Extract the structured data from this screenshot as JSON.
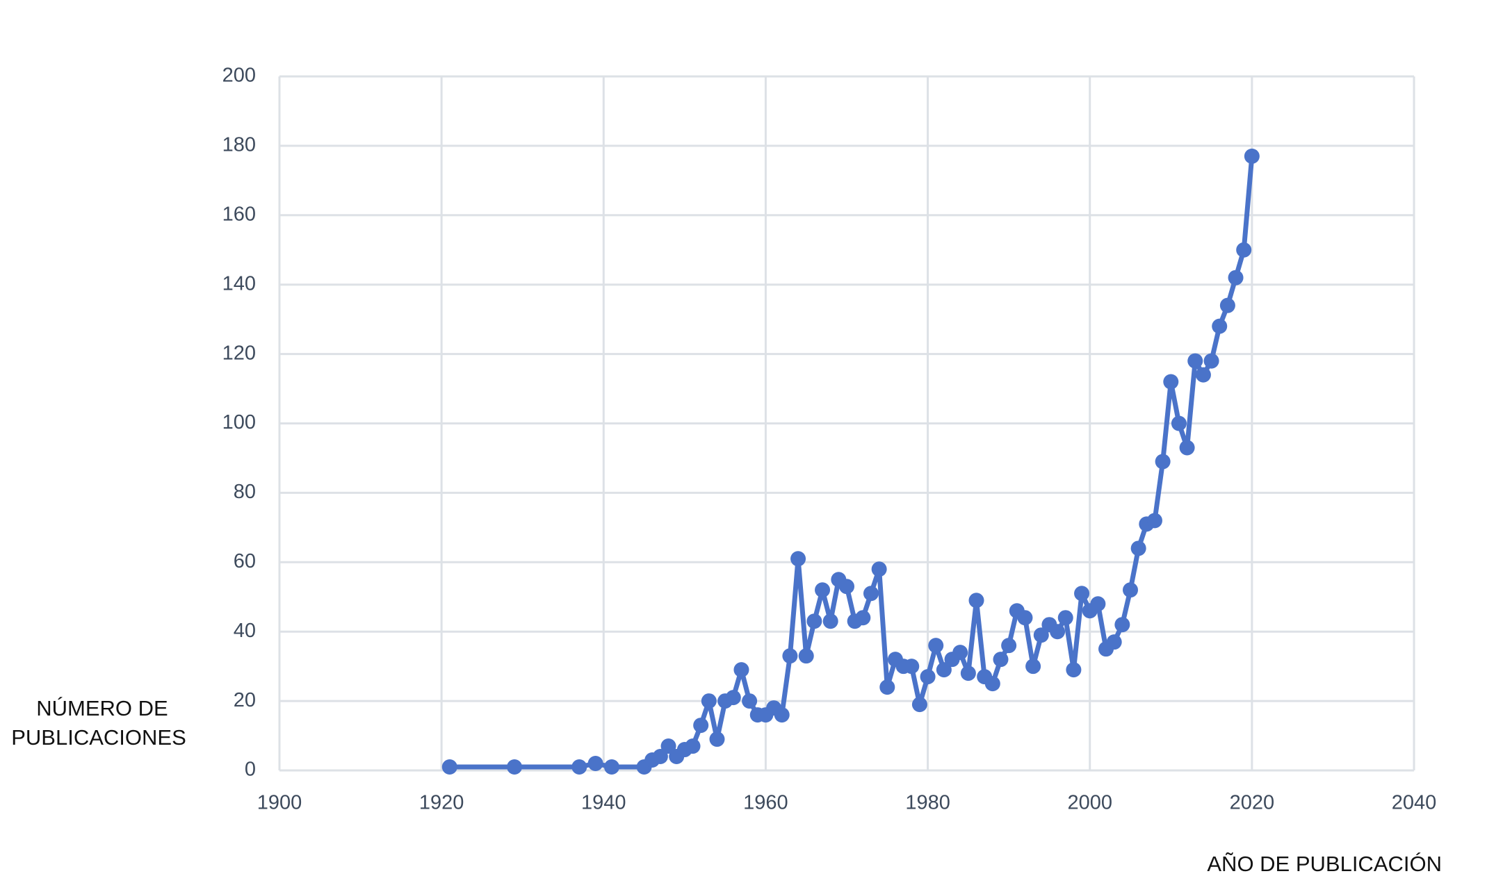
{
  "chart_data": {
    "type": "line",
    "x_label": "AÑO DE PUBLICACIÓN",
    "y_label": [
      "NÚMERO DE",
      "PUBLICACIONES"
    ],
    "x": [
      1921,
      1929,
      1937,
      1939,
      1941,
      1945,
      1946,
      1947,
      1948,
      1949,
      1950,
      1951,
      1952,
      1953,
      1954,
      1955,
      1956,
      1957,
      1958,
      1959,
      1960,
      1961,
      1962,
      1963,
      1964,
      1965,
      1966,
      1967,
      1968,
      1969,
      1970,
      1971,
      1972,
      1973,
      1974,
      1975,
      1976,
      1977,
      1978,
      1979,
      1980,
      1981,
      1982,
      1983,
      1984,
      1985,
      1986,
      1987,
      1988,
      1989,
      1990,
      1991,
      1992,
      1993,
      1994,
      1995,
      1996,
      1997,
      1998,
      1999,
      2000,
      2001,
      2002,
      2003,
      2004,
      2005,
      2006,
      2007,
      2008,
      2009,
      2010,
      2011,
      2012,
      2013,
      2014,
      2015,
      2016,
      2017,
      2018,
      2019,
      2020
    ],
    "series": [
      {
        "color": "#4a73c9",
        "values": [
          1,
          1,
          1,
          2,
          1,
          1,
          3,
          4,
          7,
          4,
          6,
          7,
          13,
          20,
          9,
          20,
          21,
          29,
          20,
          16,
          16,
          18,
          16,
          33,
          61,
          33,
          43,
          52,
          43,
          55,
          53,
          43,
          44,
          51,
          58,
          24,
          32,
          30,
          30,
          19,
          27,
          36,
          29,
          32,
          34,
          28,
          49,
          27,
          25,
          32,
          36,
          46,
          44,
          30,
          39,
          42,
          40,
          44,
          29,
          51,
          46,
          48,
          35,
          37,
          42,
          52,
          64,
          71,
          72,
          89,
          112,
          100,
          93,
          118,
          114,
          118,
          128,
          134,
          142,
          150,
          177
        ]
      }
    ],
    "xlim": [
      1900,
      2040
    ],
    "xticks": [
      1900,
      1920,
      1940,
      1960,
      1980,
      2000,
      2020,
      2040
    ],
    "ylim": [
      0,
      200
    ],
    "yticks": [
      0,
      20,
      40,
      60,
      80,
      100,
      120,
      140,
      160,
      180,
      200
    ],
    "grid": true
  }
}
